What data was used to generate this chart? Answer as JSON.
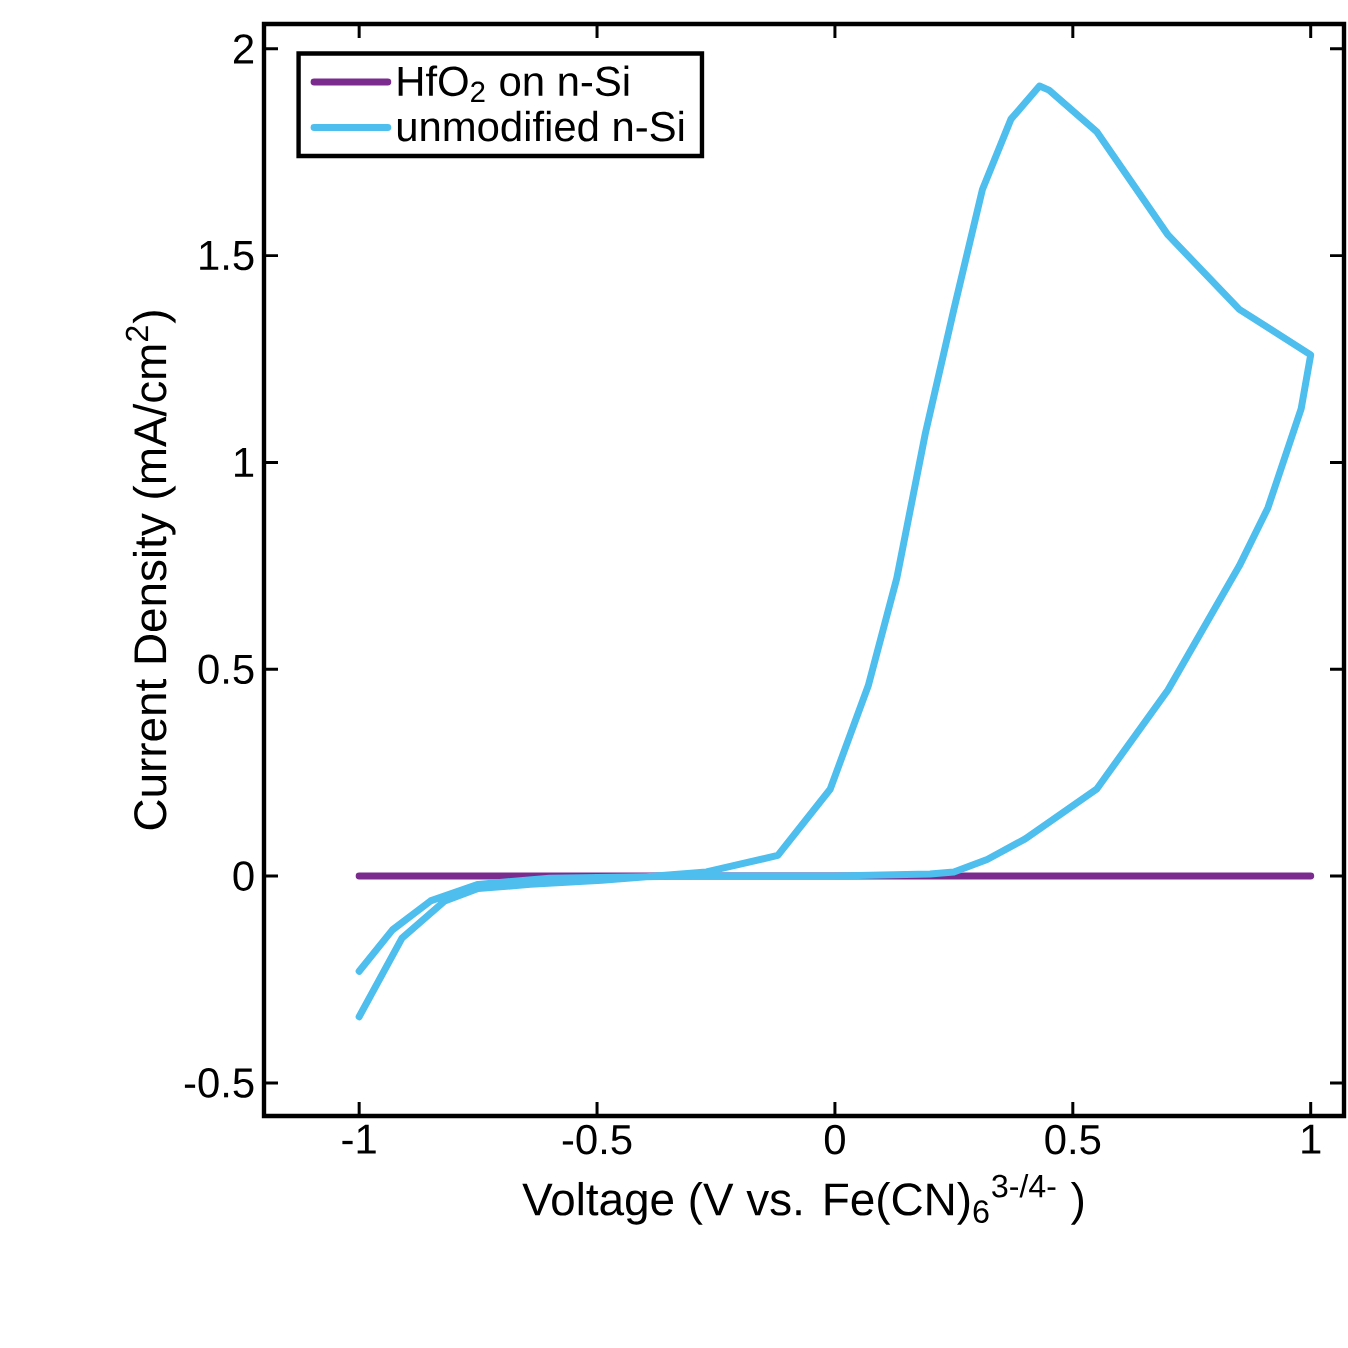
{
  "chart_data": {
    "type": "line",
    "xlabel": "Voltage (V vs. Fe(CN)$_{6}$$^{3-/4-}$ )",
    "ylabel": "Current Density (mA/cm$^{2}$)",
    "xlim": [
      -1.2,
      1.07
    ],
    "ylim": [
      -0.58,
      2.06
    ],
    "xticks": [
      -1,
      -0.5,
      0,
      0.5,
      1
    ],
    "yticks": [
      -0.5,
      0,
      0.5,
      1,
      1.5,
      2
    ],
    "grid": false,
    "legend": "top left",
    "marker": "none",
    "line_style": "solid",
    "series": [
      {
        "name": "HfO$_{2}$ on n-Si",
        "color": "#7b2a8e",
        "x": [
          -1,
          -0.5,
          0,
          0.5,
          1
        ],
        "values": [
          0,
          0,
          0,
          0,
          0
        ]
      },
      {
        "name": "unmodified n-Si",
        "color": "#4dbeee",
        "x": [
          -1,
          -0.93,
          -0.85,
          -0.75,
          -0.6,
          -0.3,
          0,
          0.2,
          0.25,
          0.32,
          0.4,
          0.55,
          0.7,
          0.85,
          0.91,
          0.98,
          1,
          0.85,
          0.7,
          0.55,
          0.45,
          0.43,
          0.37,
          0.31,
          0.25,
          0.19,
          0.13,
          0.07,
          -0.01,
          -0.12,
          -0.27,
          -0.49,
          -0.64,
          -0.75,
          -0.82,
          -0.91,
          -1
        ],
        "values": [
          -0.23,
          -0.13,
          -0.06,
          -0.02,
          -0.005,
          0,
          0,
          0.005,
          0.01,
          0.04,
          0.09,
          0.21,
          0.45,
          0.75,
          0.89,
          1.13,
          1.26,
          1.37,
          1.55,
          1.8,
          1.9,
          1.91,
          1.83,
          1.66,
          1.37,
          1.07,
          0.72,
          0.46,
          0.21,
          0.05,
          0.01,
          -0.01,
          -0.02,
          -0.03,
          -0.06,
          -0.15,
          -0.34
        ]
      }
    ]
  }
}
